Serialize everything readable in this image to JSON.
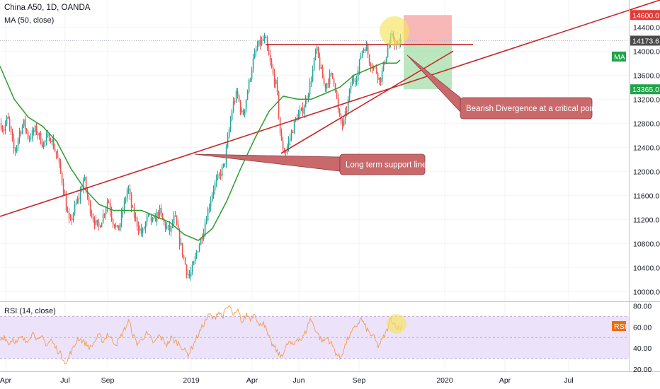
{
  "header": {
    "title": "China A50, 1D, OANDA",
    "indicator": "MA (50, close)",
    "rsi_label": "RSI (14, close)"
  },
  "badges": {
    "price_top": "14600.0",
    "price_last": "14173.6",
    "price_ma": "MA",
    "price_bottom": "13365.0",
    "rsi": "RSI"
  },
  "annotations": {
    "bearish": "Bearish Divergence at a critical point",
    "support": "Long term support line"
  },
  "colors": {
    "up": "#26a69a",
    "down": "#ef5350",
    "ma": "#2e9e2e",
    "trendline": "#c62828",
    "rsi_line": "#f2994a",
    "rsi_band": "#ece3fb",
    "annotation_fill": "#c9696b",
    "badge_red": "#e53935",
    "badge_green": "#22a34a",
    "badge_dark": "#4a4a4a",
    "badge_orange": "#ef6c00"
  },
  "chart_data": {
    "type": "candlestick",
    "symbol": "China A50",
    "timeframe": "1D",
    "source": "OANDA",
    "x_ticks": [
      "Apr",
      "Jul",
      "Sep",
      "2019",
      "Apr",
      "Jun",
      "Sep",
      "2020",
      "Apr",
      "Jul"
    ],
    "y_ticks": [
      10000.0,
      10400.0,
      10800.0,
      11200.0,
      11600.0,
      12000.0,
      12400.0,
      12800.0,
      13200.0,
      13600.0,
      14000.0,
      14400.0
    ],
    "ylim": [
      9850,
      14850
    ],
    "rsi_ticks": [
      20.0,
      40.0,
      60.0,
      80.0
    ],
    "rsi_lim": [
      18,
      83
    ],
    "rsi_band": [
      30,
      70
    ],
    "price_path": [
      [
        0,
        12800
      ],
      [
        5,
        12700
      ],
      [
        10,
        12900
      ],
      [
        15,
        12600
      ],
      [
        20,
        12300
      ],
      [
        27,
        12650
      ],
      [
        33,
        12800
      ],
      [
        40,
        12550
      ],
      [
        50,
        12700
      ],
      [
        60,
        12450
      ],
      [
        70,
        12600
      ],
      [
        80,
        12250
      ],
      [
        88,
        11800
      ],
      [
        93,
        11400
      ],
      [
        98,
        11100
      ],
      [
        105,
        11400
      ],
      [
        112,
        11600
      ],
      [
        118,
        11900
      ],
      [
        124,
        11500
      ],
      [
        130,
        11250
      ],
      [
        138,
        11050
      ],
      [
        146,
        11300
      ],
      [
        152,
        11550
      ],
      [
        158,
        11200
      ],
      [
        166,
        11000
      ],
      [
        174,
        11400
      ],
      [
        180,
        11750
      ],
      [
        186,
        11350
      ],
      [
        194,
        11100
      ],
      [
        200,
        10950
      ],
      [
        208,
        11250
      ],
      [
        216,
        11150
      ],
      [
        224,
        11350
      ],
      [
        232,
        11100
      ],
      [
        240,
        11000
      ],
      [
        246,
        11250
      ],
      [
        252,
        10900
      ],
      [
        258,
        10600
      ],
      [
        263,
        10350
      ],
      [
        267,
        10250
      ],
      [
        272,
        10400
      ],
      [
        278,
        10700
      ],
      [
        284,
        10900
      ],
      [
        292,
        11300
      ],
      [
        300,
        11700
      ],
      [
        308,
        11900
      ],
      [
        316,
        12100
      ],
      [
        322,
        12600
      ],
      [
        328,
        13100
      ],
      [
        334,
        13300
      ],
      [
        342,
        12900
      ],
      [
        350,
        13400
      ],
      [
        356,
        13800
      ],
      [
        362,
        14050
      ],
      [
        368,
        14150
      ],
      [
        374,
        14200
      ],
      [
        379,
        13900
      ],
      [
        384,
        13650
      ],
      [
        390,
        13400
      ],
      [
        396,
        12500
      ],
      [
        402,
        12300
      ],
      [
        410,
        12600
      ],
      [
        418,
        12900
      ],
      [
        426,
        13000
      ],
      [
        432,
        13200
      ],
      [
        440,
        13600
      ],
      [
        446,
        14050
      ],
      [
        452,
        13700
      ],
      [
        458,
        13400
      ],
      [
        466,
        13600
      ],
      [
        472,
        13500
      ],
      [
        478,
        12900
      ],
      [
        484,
        12750
      ],
      [
        490,
        13100
      ],
      [
        496,
        13500
      ],
      [
        504,
        13600
      ],
      [
        510,
        14000
      ],
      [
        516,
        14100
      ],
      [
        522,
        13800
      ],
      [
        530,
        13700
      ],
      [
        536,
        13500
      ],
      [
        542,
        13800
      ],
      [
        548,
        14100
      ],
      [
        554,
        14250
      ],
      [
        560,
        14050
      ],
      [
        565,
        14174
      ]
    ],
    "ma_50": [
      [
        0,
        13750
      ],
      [
        20,
        13200
      ],
      [
        40,
        12900
      ],
      [
        60,
        12750
      ],
      [
        80,
        12500
      ],
      [
        100,
        12050
      ],
      [
        120,
        11700
      ],
      [
        140,
        11450
      ],
      [
        160,
        11350
      ],
      [
        180,
        11350
      ],
      [
        200,
        11350
      ],
      [
        220,
        11250
      ],
      [
        240,
        11150
      ],
      [
        260,
        10950
      ],
      [
        280,
        10850
      ],
      [
        300,
        11050
      ],
      [
        320,
        11500
      ],
      [
        340,
        12050
      ],
      [
        360,
        12550
      ],
      [
        380,
        13000
      ],
      [
        400,
        13250
      ],
      [
        420,
        13200
      ],
      [
        440,
        13200
      ],
      [
        460,
        13300
      ],
      [
        480,
        13400
      ],
      [
        500,
        13600
      ],
      [
        520,
        13700
      ],
      [
        540,
        13800
      ],
      [
        560,
        13800
      ],
      [
        565,
        13850
      ]
    ],
    "rsi_path": [
      [
        0,
        47
      ],
      [
        6,
        52
      ],
      [
        12,
        44
      ],
      [
        18,
        49
      ],
      [
        24,
        45
      ],
      [
        30,
        50
      ],
      [
        36,
        46
      ],
      [
        42,
        51
      ],
      [
        48,
        55
      ],
      [
        54,
        46
      ],
      [
        60,
        50
      ],
      [
        66,
        43
      ],
      [
        72,
        48
      ],
      [
        78,
        41
      ],
      [
        84,
        36
      ],
      [
        90,
        30
      ],
      [
        94,
        24
      ],
      [
        98,
        34
      ],
      [
        104,
        40
      ],
      [
        110,
        50
      ],
      [
        116,
        47
      ],
      [
        122,
        44
      ],
      [
        128,
        40
      ],
      [
        134,
        47
      ],
      [
        140,
        52
      ],
      [
        146,
        46
      ],
      [
        152,
        54
      ],
      [
        158,
        48
      ],
      [
        164,
        44
      ],
      [
        170,
        50
      ],
      [
        176,
        58
      ],
      [
        182,
        66
      ],
      [
        188,
        52
      ],
      [
        194,
        44
      ],
      [
        200,
        48
      ],
      [
        206,
        54
      ],
      [
        212,
        50
      ],
      [
        218,
        44
      ],
      [
        224,
        52
      ],
      [
        230,
        48
      ],
      [
        236,
        43
      ],
      [
        242,
        50
      ],
      [
        248,
        46
      ],
      [
        254,
        44
      ],
      [
        260,
        38
      ],
      [
        266,
        34
      ],
      [
        272,
        42
      ],
      [
        278,
        50
      ],
      [
        284,
        58
      ],
      [
        290,
        66
      ],
      [
        296,
        72
      ],
      [
        302,
        67
      ],
      [
        308,
        75
      ],
      [
        314,
        70
      ],
      [
        320,
        77
      ],
      [
        324,
        80
      ],
      [
        330,
        70
      ],
      [
        336,
        75
      ],
      [
        342,
        64
      ],
      [
        348,
        72
      ],
      [
        354,
        68
      ],
      [
        360,
        74
      ],
      [
        366,
        60
      ],
      [
        372,
        66
      ],
      [
        378,
        52
      ],
      [
        384,
        44
      ],
      [
        390,
        38
      ],
      [
        396,
        32
      ],
      [
        402,
        38
      ],
      [
        408,
        46
      ],
      [
        414,
        42
      ],
      [
        420,
        50
      ],
      [
        426,
        48
      ],
      [
        432,
        56
      ],
      [
        438,
        68
      ],
      [
        444,
        60
      ],
      [
        450,
        52
      ],
      [
        456,
        46
      ],
      [
        462,
        50
      ],
      [
        468,
        44
      ],
      [
        474,
        36
      ],
      [
        480,
        30
      ],
      [
        486,
        40
      ],
      [
        492,
        50
      ],
      [
        498,
        56
      ],
      [
        504,
        62
      ],
      [
        510,
        68
      ],
      [
        516,
        60
      ],
      [
        522,
        54
      ],
      [
        528,
        50
      ],
      [
        534,
        42
      ],
      [
        540,
        48
      ],
      [
        546,
        56
      ],
      [
        552,
        68
      ],
      [
        558,
        62
      ],
      [
        564,
        58
      ],
      [
        568,
        62
      ]
    ],
    "trendlines": [
      {
        "from": [
          0,
          11250
        ],
        "to": [
          932,
          14850
        ]
      },
      {
        "from": [
          375,
          14110
        ],
        "to": [
          668,
          14110
        ]
      },
      {
        "from": [
          397,
          12300
        ],
        "to": [
          640,
          14000
        ]
      }
    ],
    "position_box": {
      "x_start": 570,
      "x_end": 638,
      "entry": 14110,
      "stop": 14600,
      "target": 13365
    }
  }
}
